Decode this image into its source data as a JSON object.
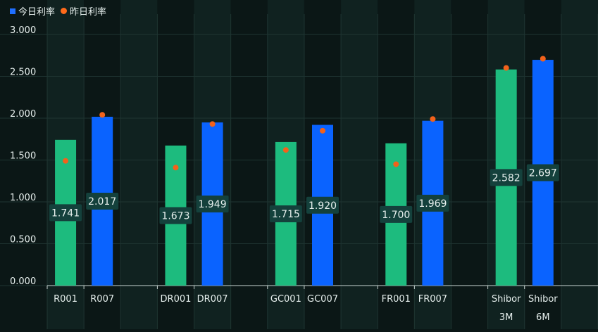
{
  "legend": {
    "today_label": "今日利率",
    "yesterday_label": "昨日利率"
  },
  "colors": {
    "background": "#0b1716",
    "band_alt": "#102220",
    "grid": "#1f3532",
    "overnight_bar": "#1dbb7e",
    "week_bar": "#0a63ff",
    "yesterday_dot": "#f2621b",
    "label_bg": "#14413c",
    "text": "#e6efed"
  },
  "chart_data": {
    "type": "bar",
    "title": "",
    "xlabel": "",
    "ylabel": "",
    "ylim": [
      0,
      3
    ],
    "yticks": [
      "0.000",
      "0.500",
      "1.000",
      "1.500",
      "2.000",
      "2.500",
      "3.000"
    ],
    "grid": true,
    "legend_position": "top-left",
    "groups": [
      {
        "bars": [
          {
            "label": "R001",
            "today": 1.741,
            "today_label": "1.741",
            "yesterday": 1.49,
            "kind": "short"
          },
          {
            "label": "R007",
            "today": 2.017,
            "today_label": "2.017",
            "yesterday": 2.04,
            "kind": "long"
          }
        ]
      },
      {
        "bars": [
          {
            "label": "DR001",
            "today": 1.673,
            "today_label": "1.673",
            "yesterday": 1.41,
            "kind": "short"
          },
          {
            "label": "DR007",
            "today": 1.949,
            "today_label": "1.949",
            "yesterday": 1.93,
            "kind": "long"
          }
        ]
      },
      {
        "bars": [
          {
            "label": "GC001",
            "today": 1.715,
            "today_label": "1.715",
            "yesterday": 1.62,
            "kind": "short"
          },
          {
            "label": "GC007",
            "today": 1.92,
            "today_label": "1.920",
            "yesterday": 1.85,
            "kind": "long"
          }
        ]
      },
      {
        "bars": [
          {
            "label": "FR001",
            "today": 1.7,
            "today_label": "1.700",
            "yesterday": 1.45,
            "kind": "short"
          },
          {
            "label": "FR007",
            "today": 1.969,
            "today_label": "1.969",
            "yesterday": 1.99,
            "kind": "long"
          }
        ]
      },
      {
        "bars": [
          {
            "label": "Shibor\n3M",
            "today": 2.582,
            "today_label": "2.582",
            "yesterday": 2.6,
            "kind": "short"
          },
          {
            "label": "Shibor\n6M",
            "today": 2.697,
            "today_label": "2.697",
            "yesterday": 2.71,
            "kind": "long"
          }
        ]
      }
    ]
  }
}
